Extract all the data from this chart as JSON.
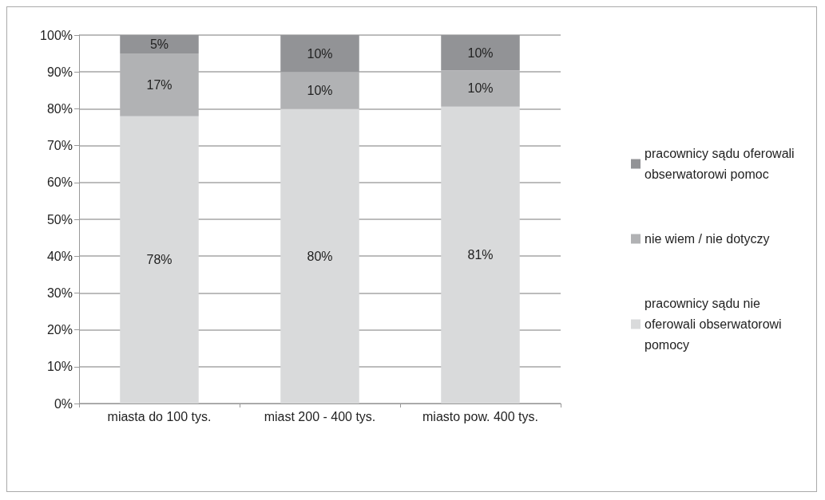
{
  "chart_data": {
    "type": "bar",
    "stacked": true,
    "categories": [
      "miasta do 100 tys.",
      "miast 200 - 400 tys.",
      "miasto pow. 400 tys."
    ],
    "series": [
      {
        "name": "pracownicy sądu nie oferowali obserwatorowi pomocy",
        "color": "#d9dadb",
        "values": [
          78,
          80,
          80.6
        ],
        "value_labels": [
          "78%",
          "80%",
          "81%"
        ]
      },
      {
        "name": "nie wiem / nie dotyczy",
        "color": "#b1b2b4",
        "values": [
          17,
          10,
          9.8
        ],
        "value_labels": [
          "17%",
          "10%",
          "10%"
        ]
      },
      {
        "name": "pracownicy sądu oferowali obserwatorowi pomoc",
        "color": "#929396",
        "values": [
          5,
          10,
          9.6
        ],
        "value_labels": [
          "5%",
          "10%",
          "10%"
        ]
      }
    ],
    "ylim": [
      0,
      100
    ],
    "yticks": [
      {
        "value": 0,
        "label": "0%"
      },
      {
        "value": 10,
        "label": "10%"
      },
      {
        "value": 20,
        "label": "20%"
      },
      {
        "value": 30,
        "label": "30%"
      },
      {
        "value": 40,
        "label": "40%"
      },
      {
        "value": 50,
        "label": "50%"
      },
      {
        "value": 60,
        "label": "60%"
      },
      {
        "value": 70,
        "label": "70%"
      },
      {
        "value": 80,
        "label": "80%"
      },
      {
        "value": 90,
        "label": "90%"
      },
      {
        "value": 100,
        "label": "100%"
      }
    ],
    "grid": "y",
    "legend": "right"
  }
}
